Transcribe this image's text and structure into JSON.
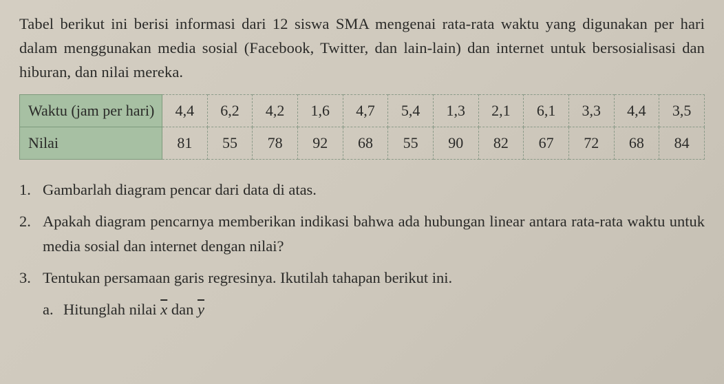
{
  "intro": "Tabel berikut ini berisi informasi dari 12 siswa SMA mengenai rata-rata waktu yang digunakan per hari dalam menggunakan media sosial (Facebook, Twitter, dan lain-lain) dan internet untuk bersosialisasi dan hiburan, dan nilai mereka.",
  "table": {
    "row1_label": "Waktu (jam per hari)",
    "row2_label": "Nilai",
    "waktu": [
      "4,4",
      "6,2",
      "4,2",
      "1,6",
      "4,7",
      "5,4",
      "1,3",
      "2,1",
      "6,1",
      "3,3",
      "4,4",
      "3,5"
    ],
    "nilai": [
      "81",
      "55",
      "78",
      "92",
      "68",
      "55",
      "90",
      "82",
      "67",
      "72",
      "68",
      "84"
    ],
    "header_bg": "#a7c0a3",
    "border_color": "#8a9a88",
    "cell_fontsize": 22
  },
  "questions": {
    "q1": {
      "num": "1.",
      "text": "Gambarlah diagram pencar dari data di atas."
    },
    "q2": {
      "num": "2.",
      "text": "Apakah diagram pencarnya memberikan indikasi bahwa ada hubungan linear antara rata-rata waktu untuk media sosial dan internet dengan nilai?"
    },
    "q3": {
      "num": "3.",
      "text": "Tentukan persamaan garis regresinya. Ikutilah tahapan berikut ini."
    },
    "q3a": {
      "num": "a.",
      "prefix": "Hitunglah nilai ",
      "var1": "x",
      "mid": " dan ",
      "var2": "y"
    }
  },
  "page_bg": "#cfc9bd",
  "text_color": "#2a2a28"
}
